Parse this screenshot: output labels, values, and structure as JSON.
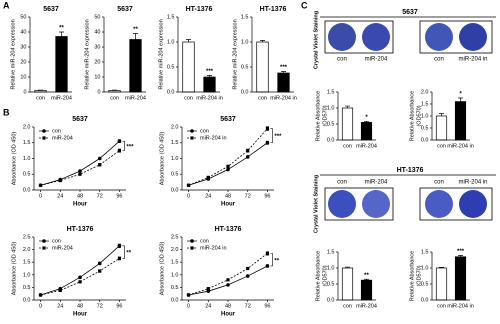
{
  "figure": {
    "panel_labels": [
      "A",
      "B",
      "C"
    ],
    "staining": [
      {
        "title": "5637",
        "side_label": "Crystal Violet Staining",
        "images": [
          "con",
          "miR-204",
          "con",
          "miR-204 in"
        ]
      },
      {
        "title": "HT-1376",
        "side_label": "Crystal Violet Staining",
        "images": [
          "con",
          "miR-204",
          "con",
          "miR-204 in"
        ]
      }
    ]
  },
  "chart_data": [
    {
      "type": "bar",
      "title": "5637",
      "y_label": "Relative miR-204 expression",
      "categories": [
        "con",
        "miR-204"
      ],
      "values": [
        1,
        37
      ],
      "errors": [
        0.3,
        3
      ],
      "colors": [
        "#ffffff",
        "#000000"
      ],
      "ylim": [
        0,
        50
      ],
      "yticks": [
        0,
        10,
        20,
        30,
        40,
        50
      ],
      "annotation": "**"
    },
    {
      "type": "bar",
      "title": "5637",
      "y_label": "Relative miR-204 expression",
      "categories": [
        "con",
        "miR-204"
      ],
      "values": [
        1,
        35
      ],
      "errors": [
        0.3,
        4
      ],
      "colors": [
        "#ffffff",
        "#000000"
      ],
      "ylim": [
        0,
        50
      ],
      "yticks": [
        0,
        10,
        20,
        30,
        40,
        50
      ],
      "annotation": "**"
    },
    {
      "type": "bar",
      "title": "HT-1376",
      "y_label": "Relative miR-204 expression",
      "categories": [
        "con",
        "miR-204 in"
      ],
      "values": [
        1.0,
        0.3
      ],
      "errors": [
        0.05,
        0.03
      ],
      "colors": [
        "#ffffff",
        "#000000"
      ],
      "ylim": [
        0,
        1.5
      ],
      "yticks": [
        {
          "value": 0,
          "label": "0.0"
        },
        0.5,
        {
          "value": 1,
          "label": "1.0"
        },
        1.5
      ],
      "annotation": "***"
    },
    {
      "type": "bar",
      "title": "HT-1376",
      "y_label": "Relative miR-204 expression",
      "categories": [
        "con",
        "miR-204 in"
      ],
      "values": [
        1.0,
        0.38
      ],
      "errors": [
        0.03,
        0.03
      ],
      "colors": [
        "#ffffff",
        "#000000"
      ],
      "ylim": [
        0,
        1.5
      ],
      "yticks": [
        {
          "value": 0,
          "label": "0.0"
        },
        0.5,
        {
          "value": 1,
          "label": "1.0"
        },
        1.5
      ],
      "annotation": "***"
    },
    {
      "type": "line",
      "title": "5637",
      "x_label": "Hour",
      "y_label": "Absorbance (OD 450)",
      "x": [
        0,
        24,
        48,
        72,
        96
      ],
      "xlim": [
        -8,
        104
      ],
      "xticks": [
        0,
        24,
        48,
        72,
        96
      ],
      "ylim": [
        0,
        2
      ],
      "yticks": [
        {
          "value": 0,
          "label": "0.0"
        },
        0.5,
        {
          "value": 1,
          "label": "1.0"
        },
        1.5,
        {
          "value": 2,
          "label": "2.0"
        }
      ],
      "legend": "upper left",
      "annotation": "***",
      "series": [
        {
          "name": "con",
          "color": "#000000",
          "marker": "circle",
          "dashed": false,
          "values": [
            0.15,
            0.33,
            0.6,
            1.0,
            1.55
          ],
          "errors": [
            0.02,
            0.03,
            0.03,
            0.04,
            0.05
          ]
        },
        {
          "name": "miR-204",
          "color": "#000000",
          "marker": "square",
          "dashed": true,
          "values": [
            0.15,
            0.3,
            0.5,
            0.8,
            1.25
          ],
          "errors": [
            0.02,
            0.02,
            0.03,
            0.04,
            0.05
          ]
        }
      ]
    },
    {
      "type": "line",
      "title": "5637",
      "x_label": "Hour",
      "y_label": "Absorbance (OD 450)",
      "x": [
        0,
        24,
        48,
        72,
        96
      ],
      "xlim": [
        -8,
        104
      ],
      "xticks": [
        0,
        24,
        48,
        72,
        96
      ],
      "ylim": [
        0,
        2
      ],
      "yticks": [
        {
          "value": 0,
          "label": "0.0"
        },
        0.5,
        {
          "value": 1,
          "label": "1.0"
        },
        1.5,
        {
          "value": 2,
          "label": "2.0"
        }
      ],
      "legend": "upper left",
      "annotation": "***",
      "series": [
        {
          "name": "con",
          "color": "#000000",
          "marker": "circle",
          "dashed": false,
          "values": [
            0.15,
            0.35,
            0.65,
            1.05,
            1.5
          ],
          "errors": [
            0.02,
            0.03,
            0.03,
            0.04,
            0.05
          ]
        },
        {
          "name": "miR-204 in",
          "color": "#000000",
          "marker": "square",
          "dashed": true,
          "values": [
            0.15,
            0.4,
            0.75,
            1.25,
            1.95
          ],
          "errors": [
            0.02,
            0.03,
            0.04,
            0.05,
            0.06
          ]
        }
      ]
    },
    {
      "type": "line",
      "title": "HT-1376",
      "x_label": "Hour",
      "y_label": "Absorbance (OD 450)",
      "x": [
        0,
        24,
        48,
        72,
        96
      ],
      "xlim": [
        -8,
        104
      ],
      "xticks": [
        0,
        24,
        48,
        72,
        96
      ],
      "ylim": [
        0,
        2.5
      ],
      "yticks": [
        {
          "value": 0,
          "label": "0.0"
        },
        0.5,
        {
          "value": 1,
          "label": "1.0"
        },
        1.5,
        {
          "value": 2,
          "label": "2.0"
        },
        2.5
      ],
      "legend": "upper left",
      "annotation": "**",
      "series": [
        {
          "name": "con",
          "color": "#000000",
          "marker": "circle",
          "dashed": false,
          "values": [
            0.2,
            0.45,
            0.9,
            1.45,
            2.15
          ],
          "errors": [
            0.02,
            0.03,
            0.04,
            0.05,
            0.07
          ]
        },
        {
          "name": "miR-204",
          "color": "#000000",
          "marker": "square",
          "dashed": true,
          "values": [
            0.2,
            0.38,
            0.72,
            1.15,
            1.65
          ],
          "errors": [
            0.02,
            0.03,
            0.04,
            0.05,
            0.06
          ]
        }
      ]
    },
    {
      "type": "line",
      "title": "HT-1376",
      "x_label": "Hour",
      "y_label": "Absorbance (OD 450)",
      "x": [
        0,
        24,
        48,
        72,
        96
      ],
      "xlim": [
        -8,
        104
      ],
      "xticks": [
        0,
        24,
        48,
        72,
        96
      ],
      "ylim": [
        0,
        2.5
      ],
      "yticks": [
        {
          "value": 0,
          "label": "0.0"
        },
        0.5,
        {
          "value": 1,
          "label": "1.0"
        },
        1.5,
        {
          "value": 2,
          "label": "2.0"
        },
        2.5
      ],
      "legend": "upper left",
      "annotation": "**",
      "series": [
        {
          "name": "con",
          "color": "#000000",
          "marker": "circle",
          "dashed": false,
          "values": [
            0.2,
            0.35,
            0.6,
            0.95,
            1.35
          ],
          "errors": [
            0.02,
            0.03,
            0.03,
            0.04,
            0.05
          ]
        },
        {
          "name": "miR-204 in",
          "color": "#000000",
          "marker": "square",
          "dashed": true,
          "values": [
            0.2,
            0.45,
            0.8,
            1.25,
            1.85
          ],
          "errors": [
            0.02,
            0.03,
            0.04,
            0.05,
            0.07
          ]
        }
      ]
    },
    {
      "type": "bar",
      "y_label": [
        "Relative Absorbance",
        "(OD570)"
      ],
      "categories": [
        "con",
        "miR-204"
      ],
      "values": [
        1.0,
        0.55
      ],
      "errors": [
        0.06,
        0.03
      ],
      "colors": [
        "#ffffff",
        "#000000"
      ],
      "ylim": [
        0,
        1.5
      ],
      "yticks": [
        {
          "value": 0,
          "label": "0.0"
        },
        0.5,
        {
          "value": 1,
          "label": "1.0"
        },
        1.5
      ],
      "annotation": "*"
    },
    {
      "type": "bar",
      "y_label": [
        "Relative Absorbance",
        "(OD570)"
      ],
      "categories": [
        "con",
        "miR-204 in"
      ],
      "values": [
        1.0,
        1.6
      ],
      "errors": [
        0.1,
        0.15
      ],
      "colors": [
        "#ffffff",
        "#000000"
      ],
      "ylim": [
        0,
        2
      ],
      "yticks": [
        {
          "value": 0,
          "label": "0.0"
        },
        0.5,
        {
          "value": 1,
          "label": "1.0"
        },
        1.5,
        {
          "value": 2,
          "label": "2.0"
        }
      ],
      "annotation": "*"
    },
    {
      "type": "bar",
      "y_label": [
        "Relative Absorbance",
        "(OD570)"
      ],
      "categories": [
        "con",
        "miR-204"
      ],
      "values": [
        1.0,
        0.62
      ],
      "errors": [
        0.03,
        0.03
      ],
      "colors": [
        "#ffffff",
        "#000000"
      ],
      "ylim": [
        0,
        1.5
      ],
      "yticks": [
        {
          "value": 0,
          "label": "0.0"
        },
        0.5,
        {
          "value": 1,
          "label": "1.0"
        },
        1.5
      ],
      "annotation": "**"
    },
    {
      "type": "bar",
      "y_label": [
        "Relative Absorbance",
        "(OD570)"
      ],
      "categories": [
        "con",
        "miR-204 in"
      ],
      "values": [
        1.0,
        1.35
      ],
      "errors": [
        0.02,
        0.04
      ],
      "colors": [
        "#ffffff",
        "#000000"
      ],
      "ylim": [
        0,
        1.5
      ],
      "yticks": [
        {
          "value": 0,
          "label": "0.0"
        },
        0.5,
        {
          "value": 1,
          "label": "1.0"
        },
        1.5
      ],
      "annotation": "***"
    }
  ]
}
